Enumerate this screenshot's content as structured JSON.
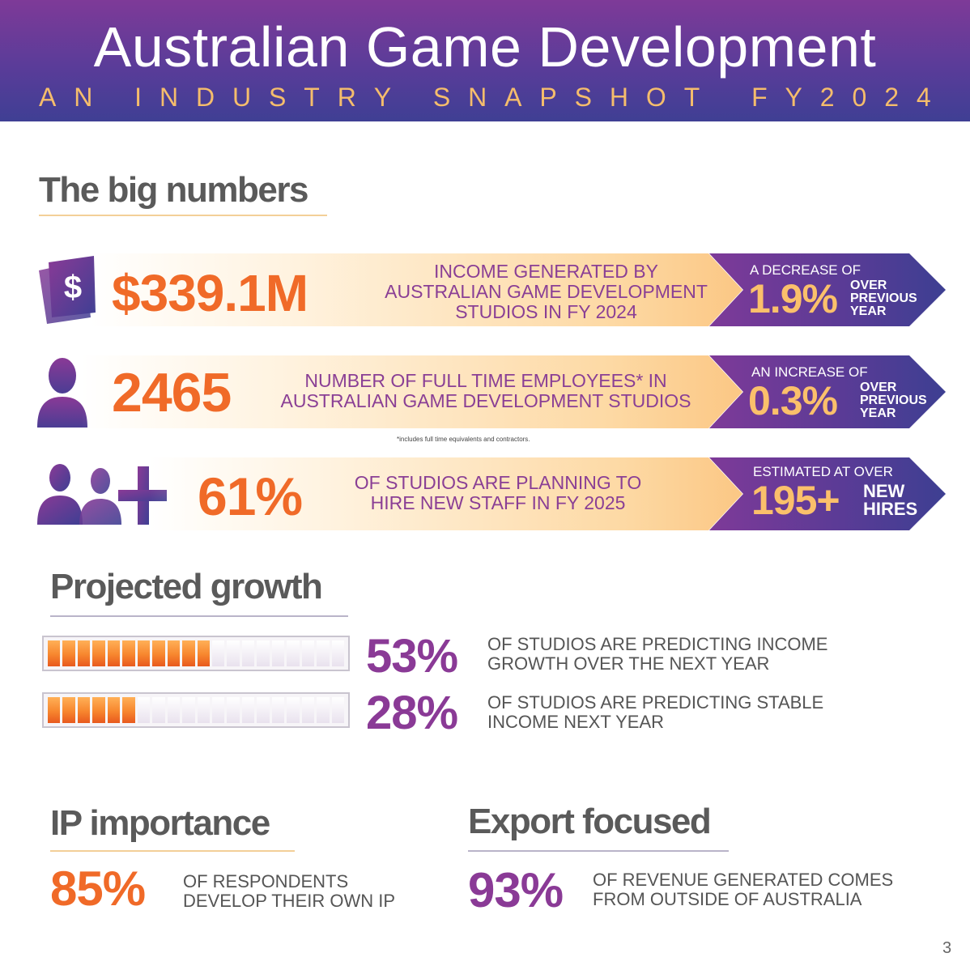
{
  "header": {
    "title": "Australian Game Development",
    "subtitle_words": [
      "A",
      "N",
      "I",
      "N",
      "D",
      "U",
      "S",
      "T",
      "R",
      "Y",
      "S",
      "N",
      "A",
      "P",
      "S",
      "H",
      "O",
      "T",
      "F",
      "Y",
      "2",
      "0",
      "2",
      "4"
    ],
    "subtitle": "AN INDUSTRY SNAPSHOT FY2024"
  },
  "big_numbers": {
    "heading": "The big numbers",
    "income": {
      "value": "$339.1M",
      "desc_line1": "INCOME GENERATED BY",
      "desc_line2": "AUSTRALIAN GAME DEVELOPMENT",
      "desc_line3": "STUDIOS IN FY 2024",
      "change_label": "A DECREASE OF",
      "change_value": "1.9%",
      "change_note_1": "OVER",
      "change_note_2": "PREVIOUS",
      "change_note_3": "YEAR"
    },
    "employees": {
      "value": "2465",
      "desc_line1": "NUMBER OF FULL TIME EMPLOYEES* IN",
      "desc_line2": "AUSTRALIAN GAME DEVELOPMENT STUDIOS",
      "footnote": "*includes full time equivalents and contractors.",
      "change_label": "AN INCREASE OF",
      "change_value": "0.3%",
      "change_note_1": "OVER",
      "change_note_2": "PREVIOUS",
      "change_note_3": "YEAR"
    },
    "hiring": {
      "value": "61%",
      "desc_line1": "OF STUDIOS ARE PLANNING TO",
      "desc_line2": "HIRE NEW STAFF IN FY 2025",
      "estimate_label": "ESTIMATED AT OVER",
      "estimate_value": "195+",
      "estimate_note_1": "NEW",
      "estimate_note_2": "HIRES"
    }
  },
  "projected_growth": {
    "heading": "Projected growth",
    "rows": [
      {
        "value": "53%",
        "fraction": 0.53,
        "line1": "OF STUDIOS ARE PREDICTING INCOME",
        "line2": "GROWTH OVER THE NEXT YEAR"
      },
      {
        "value": "28%",
        "fraction": 0.28,
        "line1": "OF STUDIOS ARE PREDICTING STABLE",
        "line2": "INCOME NEXT YEAR"
      }
    ]
  },
  "ip": {
    "heading": "IP importance",
    "value": "85%",
    "line1": "OF RESPONDENTS",
    "line2": "DEVELOP THEIR OWN IP"
  },
  "export": {
    "heading": "Export focused",
    "value": "93%",
    "line1": "OF REVENUE GENERATED COMES",
    "line2": "FROM OUTSIDE OF AUSTRALIA"
  },
  "page_number": "3",
  "colors": {
    "orange": "#f06a28",
    "purple": "#8a3a96",
    "gold": "#fbc06b",
    "header_top": "#7e3a98",
    "header_bottom": "#3f3f94"
  },
  "icons": [
    "dollar-book-icon",
    "person-icon",
    "people-add-icon"
  ]
}
